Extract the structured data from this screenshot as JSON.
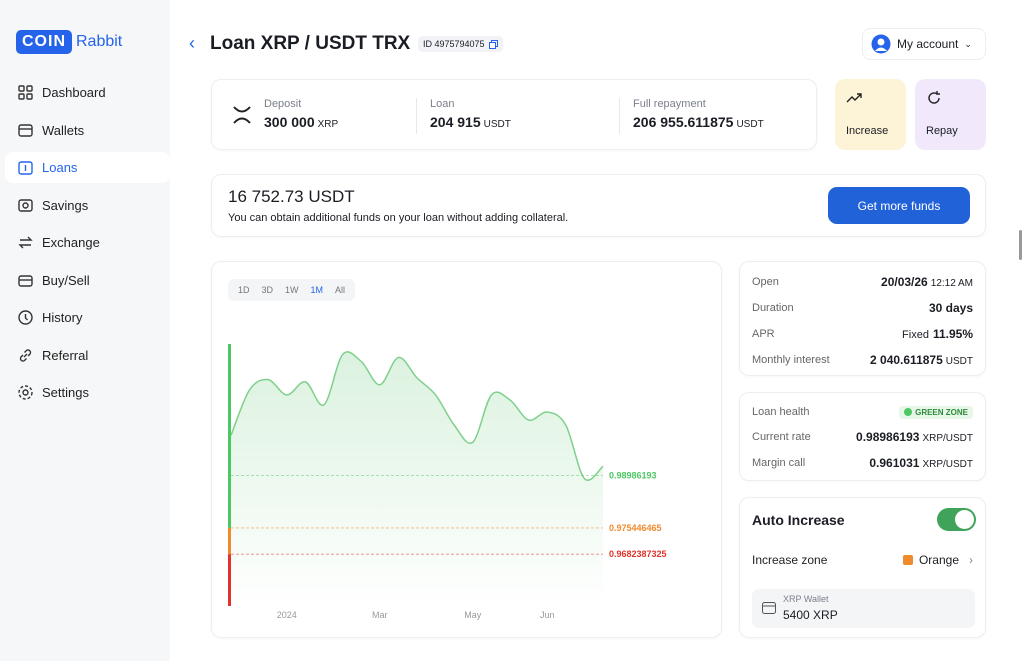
{
  "brand": {
    "logo": "COIN",
    "name": "Rabbit"
  },
  "nav": [
    "Dashboard",
    "Wallets",
    "Loans",
    "Savings",
    "Exchange",
    "Buy/Sell",
    "History",
    "Referral",
    "Settings"
  ],
  "active_nav": "Loans",
  "header": {
    "title": "Loan XRP / USDT TRX",
    "id": "ID 4975794075",
    "account": "My account"
  },
  "summary": [
    {
      "label": "Deposit",
      "value": "300 000",
      "unit": "XRP"
    },
    {
      "label": "Loan",
      "value": "204 915",
      "unit": "USDT"
    },
    {
      "label": "Full repayment",
      "value": "206 955.611875",
      "unit": "USDT"
    }
  ],
  "actions": [
    {
      "label": "Increase",
      "color": "#fdf3d6"
    },
    {
      "label": "Repay",
      "color": "#f1e9fb"
    }
  ],
  "funds": {
    "amount": "16 752.73 USDT",
    "text": "You can obtain additional funds on your loan without adding collateral.",
    "button": "Get more funds"
  },
  "chart": {
    "type": "line",
    "ranges": [
      "1D",
      "3D",
      "1W",
      "1M",
      "All"
    ],
    "active_range": "1M",
    "categories": [
      null,
      null,
      null,
      "2024",
      null,
      null,
      null,
      null,
      "Mar",
      null,
      null,
      null,
      null,
      "May",
      null,
      null,
      null,
      "Jun",
      null,
      null,
      null
    ],
    "values": [
      1.0009,
      1.0134,
      1.0162,
      1.012,
      1.0156,
      1.0093,
      1.0231,
      1.0212,
      1.0148,
      1.0223,
      1.0167,
      1.012,
      1.0037,
      0.999,
      1.012,
      1.0106,
      1.0051,
      1.0073,
      1.0037,
      0.989,
      0.9924
    ],
    "color": "#7fd08c",
    "ylim": [
      0.954,
      1.026
    ],
    "levels": [
      {
        "value": 0.98986193,
        "color": "#4cc764"
      },
      {
        "value": 0.975446465,
        "color": "#f08a2c"
      },
      {
        "value": 0.9682387325,
        "color": "#e0332b"
      }
    ]
  },
  "details": [
    {
      "label": "Open",
      "value": "20/03/26",
      "unit": "12:12 AM"
    },
    {
      "label": "Duration",
      "value": "30 days"
    },
    {
      "label": "APR",
      "prefix": "Fixed",
      "value": "11.95%"
    },
    {
      "label": "Monthly interest",
      "value": "2 040.611875",
      "unit": "USDT"
    }
  ],
  "health": {
    "label": "Loan health",
    "badge": "GREEN ZONE",
    "rows": [
      {
        "label": "Current rate",
        "value": "0.98986193",
        "unit": "XRP/USDT"
      },
      {
        "label": "Margin call",
        "value": "0.961031",
        "unit": "XRP/USDT"
      }
    ]
  },
  "auto": {
    "title": "Auto Increase",
    "enabled": true,
    "zone_label": "Increase zone",
    "zone": "Orange",
    "zone_color": "#f08a2c",
    "wallet_label": "XRP Wallet",
    "wallet_value": "5400 XRP"
  }
}
